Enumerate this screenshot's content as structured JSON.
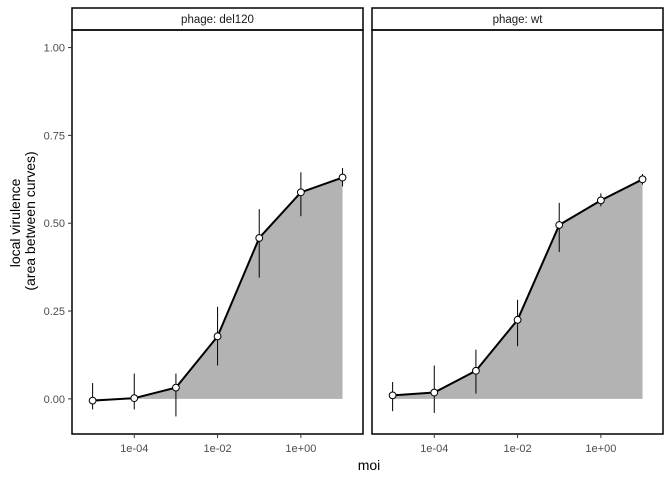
{
  "chart_data": {
    "type": "area",
    "xlabel": "moi",
    "ylabel_lines": [
      "local virulence",
      "(area between curves)"
    ],
    "x_scale": "log10",
    "x_ticks": [
      {
        "value": 0.0001,
        "label": "1e-04"
      },
      {
        "value": 0.01,
        "label": "1e-02"
      },
      {
        "value": 1,
        "label": "1e+00"
      }
    ],
    "y_ticks": [
      {
        "value": 0,
        "label": "0.00"
      },
      {
        "value": 0.25,
        "label": "0.25"
      },
      {
        "value": 0.5,
        "label": "0.50"
      },
      {
        "value": 0.75,
        "label": "0.75"
      },
      {
        "value": 1.0,
        "label": "1.00"
      }
    ],
    "xlim": [
      3.2e-06,
      31
    ],
    "ylim": [
      -0.1,
      1.05
    ],
    "grid": false,
    "colors": {
      "fill": "#b3b3b3",
      "line": "#000000",
      "point_fill": "#ffffff",
      "errorbar": "#000000"
    },
    "panels": [
      {
        "strip_label": "phage: del120",
        "x": [
          1e-05,
          0.0001,
          0.001,
          0.01,
          0.1,
          1,
          10
        ],
        "y": [
          -0.005,
          0.002,
          0.032,
          0.178,
          0.458,
          0.588,
          0.63
        ],
        "y_low": [
          -0.03,
          -0.03,
          -0.05,
          0.095,
          0.345,
          0.52,
          0.605
        ],
        "y_high": [
          0.045,
          0.072,
          0.072,
          0.262,
          0.54,
          0.645,
          0.657
        ]
      },
      {
        "strip_label": "phage: wt",
        "x": [
          1e-05,
          0.0001,
          0.001,
          0.01,
          0.1,
          1,
          10
        ],
        "y": [
          0.01,
          0.018,
          0.08,
          0.225,
          0.495,
          0.565,
          0.625
        ],
        "y_low": [
          -0.035,
          -0.04,
          0.015,
          0.15,
          0.418,
          0.548,
          0.61
        ],
        "y_high": [
          0.048,
          0.095,
          0.14,
          0.282,
          0.558,
          0.585,
          0.64
        ]
      }
    ]
  }
}
